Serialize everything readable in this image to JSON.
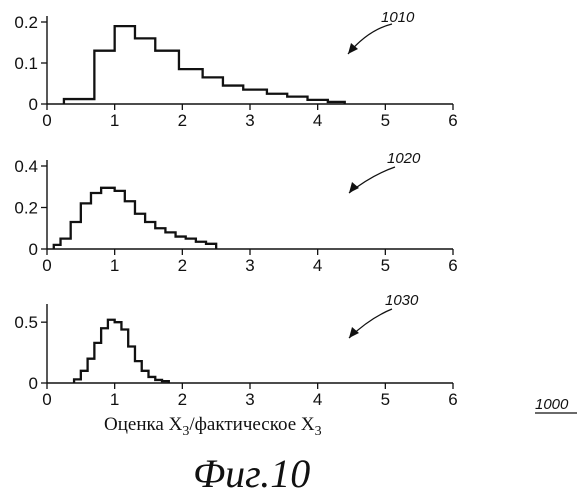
{
  "figure": {
    "xlabel": "Оценка X",
    "xlabel_sub": "3",
    "xlabel_mid": "/фактическое X",
    "xlabel_sub2": "3",
    "caption": "Фиг.10",
    "figure_ref": "1000"
  },
  "chart_data": [
    {
      "type": "histogram",
      "ref_label": "1010",
      "xlim": [
        0,
        6
      ],
      "ylim": [
        0,
        0.2
      ],
      "x_ticks": [
        "0",
        "1",
        "2",
        "3",
        "4",
        "5",
        "6"
      ],
      "y_ticks": [
        {
          "value": 0,
          "label": "0"
        },
        {
          "value": 0.1,
          "label": "0.1"
        },
        {
          "value": 0.2,
          "label": "0.2"
        }
      ],
      "bin_edges": [
        0.25,
        0.5,
        0.7,
        1.0,
        1.3,
        1.6,
        1.95,
        2.3,
        2.6,
        2.9,
        3.25,
        3.55,
        3.85,
        4.15,
        4.4
      ],
      "values": [
        0.012,
        0.012,
        0.13,
        0.19,
        0.16,
        0.13,
        0.085,
        0.065,
        0.045,
        0.035,
        0.025,
        0.018,
        0.01,
        0.005
      ]
    },
    {
      "type": "histogram",
      "ref_label": "1020",
      "xlim": [
        0,
        6
      ],
      "ylim": [
        0,
        0.4
      ],
      "x_ticks": [
        "0",
        "1",
        "2",
        "3",
        "4",
        "5",
        "6"
      ],
      "y_ticks": [
        {
          "value": 0,
          "label": "0"
        },
        {
          "value": 0.2,
          "label": "0.2"
        },
        {
          "value": 0.4,
          "label": "0.4"
        }
      ],
      "bin_edges": [
        0.1,
        0.2,
        0.35,
        0.5,
        0.65,
        0.8,
        1.0,
        1.15,
        1.3,
        1.45,
        1.6,
        1.75,
        1.9,
        2.05,
        2.2,
        2.35,
        2.5
      ],
      "values": [
        0.02,
        0.05,
        0.13,
        0.22,
        0.27,
        0.295,
        0.28,
        0.23,
        0.17,
        0.13,
        0.1,
        0.08,
        0.06,
        0.05,
        0.035,
        0.025
      ],
      "line_tail": [
        2.5,
        6
      ]
    },
    {
      "type": "histogram",
      "ref_label": "1030",
      "xlim": [
        0,
        6
      ],
      "ylim": [
        0,
        0.6
      ],
      "x_ticks": [
        "0",
        "1",
        "2",
        "3",
        "4",
        "5",
        "6"
      ],
      "y_ticks": [
        {
          "value": 0,
          "label": "0"
        },
        {
          "value": 0.5,
          "label": "0.5"
        }
      ],
      "bin_edges": [
        0.4,
        0.5,
        0.6,
        0.7,
        0.8,
        0.9,
        1.0,
        1.1,
        1.2,
        1.3,
        1.4,
        1.5,
        1.6,
        1.7,
        1.8
      ],
      "values": [
        0.03,
        0.1,
        0.2,
        0.33,
        0.45,
        0.52,
        0.5,
        0.44,
        0.3,
        0.18,
        0.1,
        0.05,
        0.025,
        0.015
      ],
      "line_tail": [
        1.8,
        6
      ]
    }
  ]
}
